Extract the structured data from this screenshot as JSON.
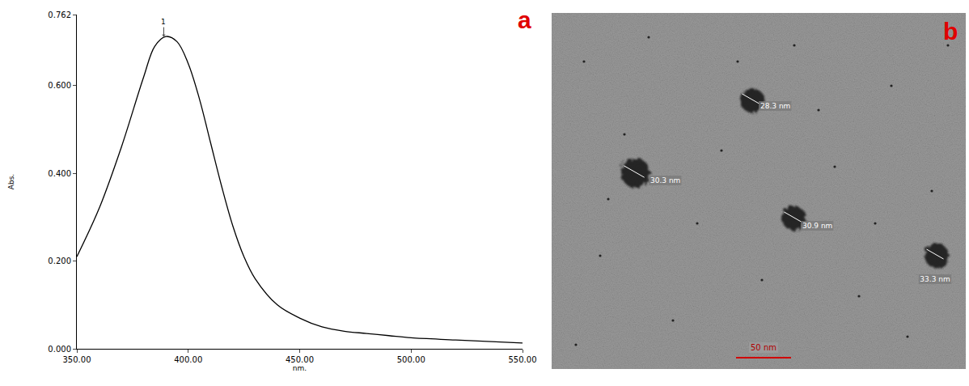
{
  "chart_data": {
    "type": "line",
    "panel_label": "a",
    "x_label": "nm.",
    "y_label": "Abs.",
    "x": [
      350,
      360,
      370,
      380,
      385,
      390,
      395,
      400,
      405,
      410,
      415,
      420,
      425,
      430,
      440,
      450,
      460,
      470,
      480,
      490,
      500,
      520,
      550
    ],
    "values": [
      0.21,
      0.32,
      0.46,
      0.62,
      0.69,
      0.712,
      0.7,
      0.65,
      0.57,
      0.47,
      0.37,
      0.28,
      0.21,
      0.16,
      0.1,
      0.07,
      0.05,
      0.04,
      0.035,
      0.03,
      0.025,
      0.02,
      0.013
    ],
    "color": "#000000",
    "xlim": [
      350,
      550
    ],
    "xticks": [
      {
        "value": 350,
        "label": "350.00"
      },
      {
        "value": 400,
        "label": "400.00"
      },
      {
        "value": 450,
        "label": "450.00"
      },
      {
        "value": 500,
        "label": "500.00"
      },
      {
        "value": 550,
        "label": "550.00"
      }
    ],
    "ylim": [
      0,
      0.762
    ],
    "yticks": [
      {
        "value": 0,
        "label": "0.000"
      },
      {
        "value": 0.2,
        "label": "0.200"
      },
      {
        "value": 0.4,
        "label": "0.400"
      },
      {
        "value": 0.6,
        "label": "0.600"
      },
      {
        "value": 0.762,
        "label": "0.762"
      }
    ],
    "annotations": [
      {
        "text": "1",
        "x": 389,
        "y": 0.712
      }
    ],
    "grid": false
  },
  "image": {
    "panel_label": "b",
    "particles": [
      "28.3 nm",
      "30.3 nm",
      "30.9 nm",
      "33.3 nm"
    ],
    "scale_bar": "50 nm"
  }
}
